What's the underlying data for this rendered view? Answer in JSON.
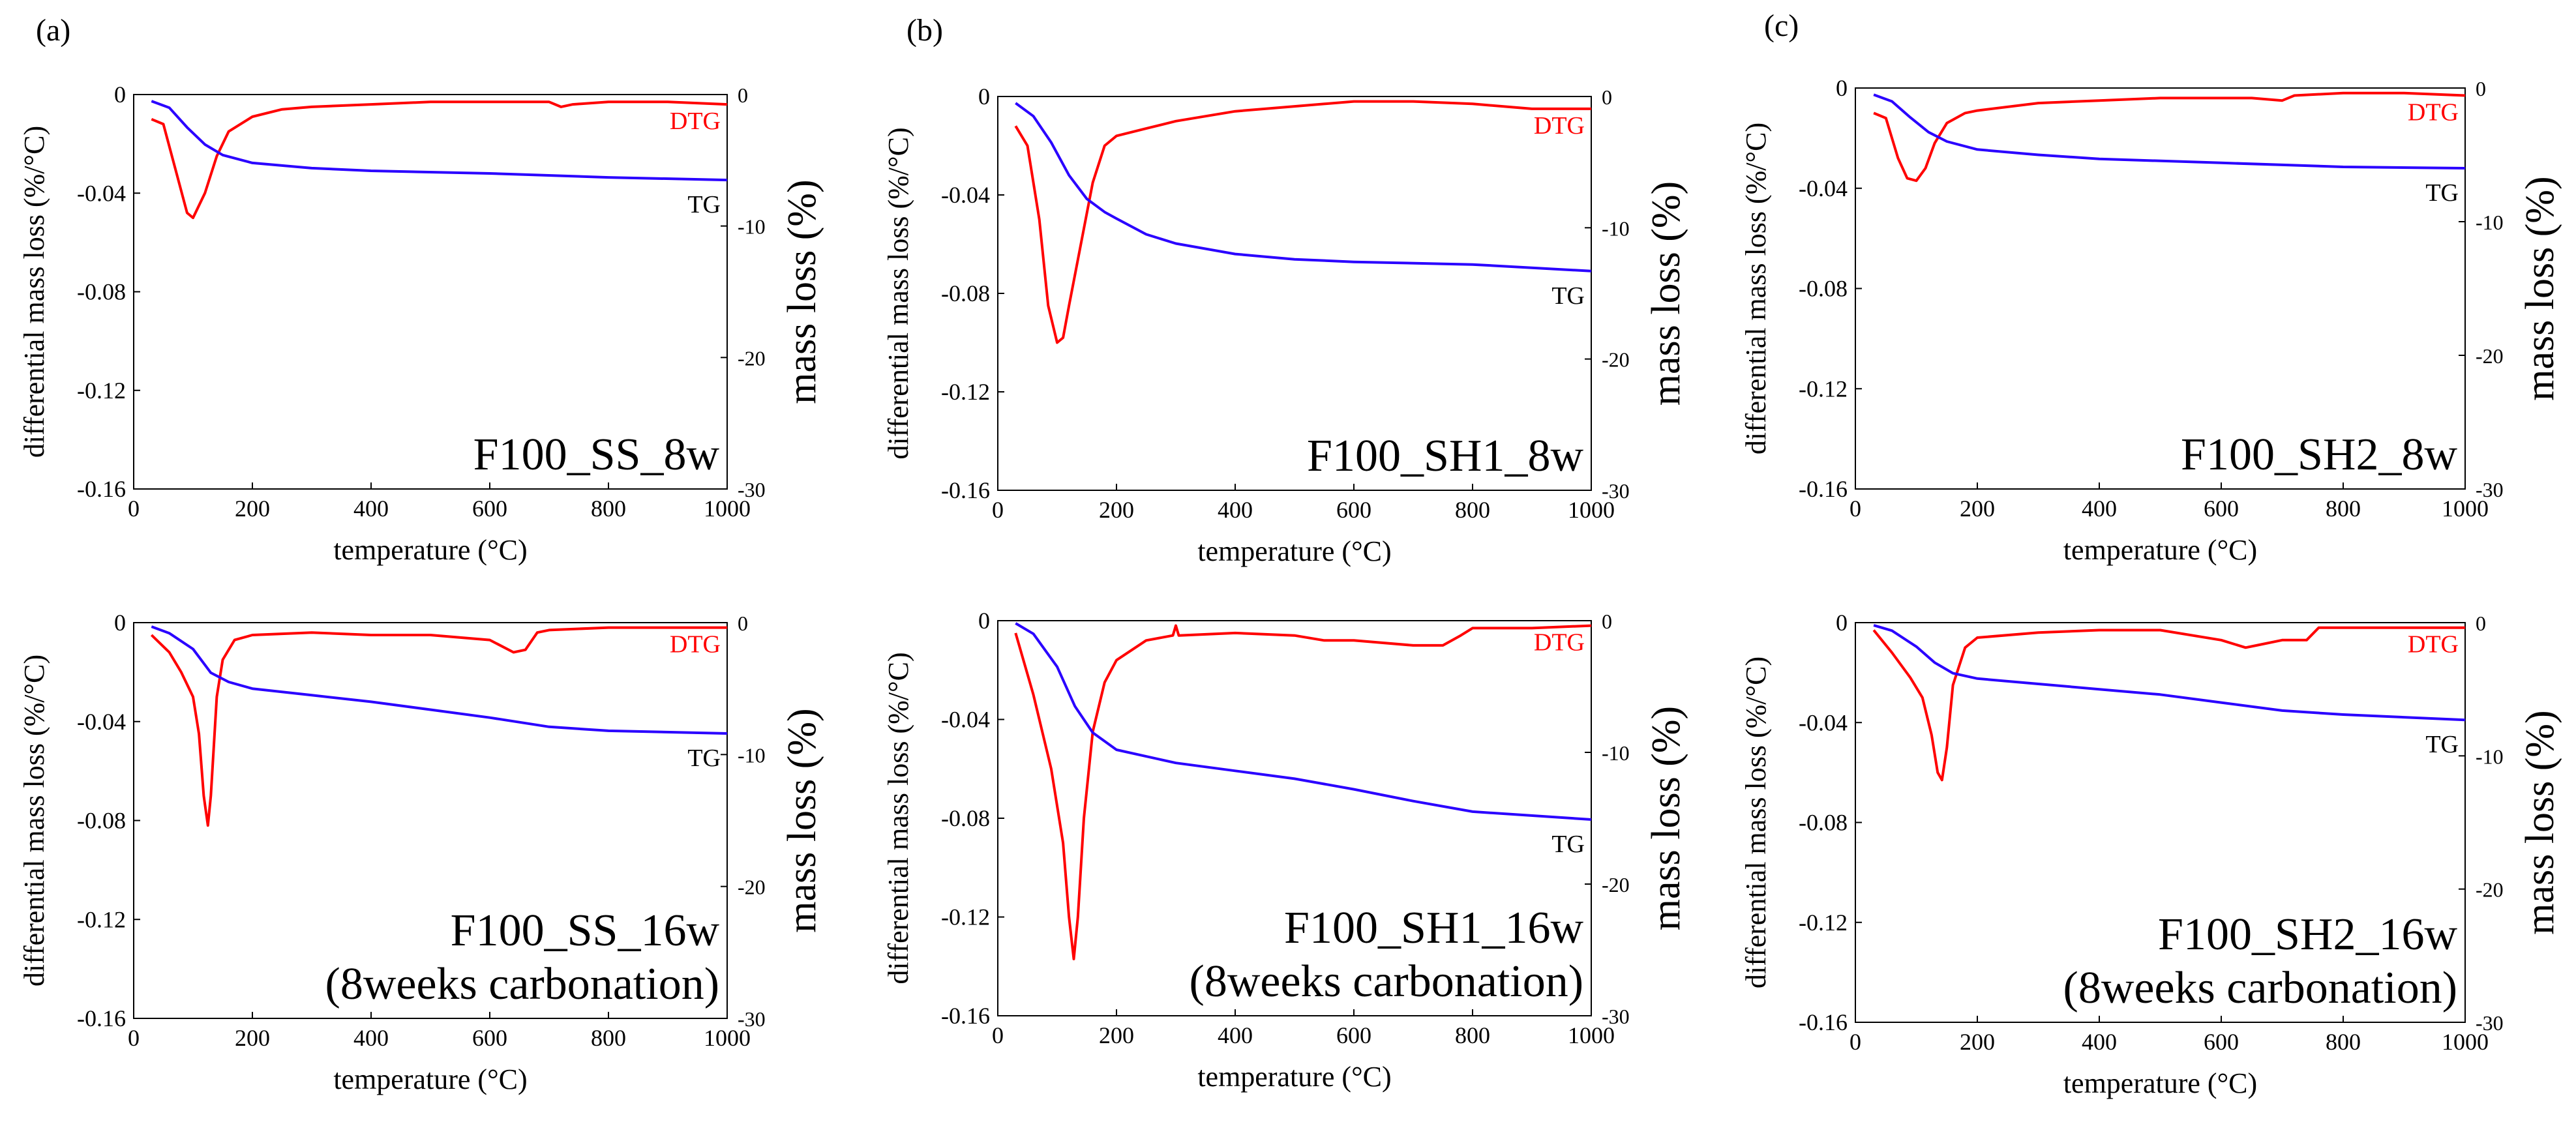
{
  "panel_letters": [
    "(a)",
    "(b)",
    "(c)"
  ],
  "chart_data": [
    {
      "type": "line",
      "panel": "(a)",
      "sample_label": [
        "F100_SS_8w"
      ],
      "xlabel": "temperature (°C)",
      "ylabel": "differential mass loss (%/°C)",
      "ylabel_right": "mass loss (%)",
      "xlim": [
        0,
        1000
      ],
      "ylim": [
        -0.16,
        0
      ],
      "ylim_right": [
        -30,
        0
      ],
      "xticks": [
        "0",
        "200",
        "400",
        "600",
        "800",
        "1000"
      ],
      "yticks": [
        "0",
        "-0.04",
        "-0.08",
        "-0.12",
        "-0.16"
      ],
      "yticks_right": [
        "0",
        "-10",
        "-20",
        "-30"
      ],
      "series": [
        {
          "name": "DTG",
          "axis": "left",
          "color": "#ff0000",
          "x": [
            30,
            50,
            70,
            90,
            100,
            120,
            140,
            160,
            200,
            250,
            300,
            400,
            500,
            600,
            700,
            720,
            740,
            800,
            900,
            1000
          ],
          "y": [
            -0.01,
            -0.012,
            -0.03,
            -0.048,
            -0.05,
            -0.04,
            -0.025,
            -0.015,
            -0.009,
            -0.006,
            -0.005,
            -0.004,
            -0.003,
            -0.003,
            -0.003,
            -0.005,
            -0.004,
            -0.003,
            -0.003,
            -0.004
          ]
        },
        {
          "name": "TG",
          "axis": "right",
          "color": "#2a00ff",
          "x": [
            30,
            60,
            90,
            120,
            150,
            200,
            300,
            400,
            600,
            800,
            1000
          ],
          "y": [
            -0.5,
            -1.0,
            -2.5,
            -3.8,
            -4.6,
            -5.2,
            -5.6,
            -5.8,
            -6.0,
            -6.3,
            -6.5
          ]
        }
      ]
    },
    {
      "type": "line",
      "panel": "(b)",
      "sample_label": [
        "F100_SH1_8w"
      ],
      "xlabel": "temperature (°C)",
      "ylabel": "differential mass loss (%/°C)",
      "ylabel_right": "mass loss (%)",
      "xlim": [
        0,
        1000
      ],
      "ylim": [
        -0.16,
        0
      ],
      "ylim_right": [
        -30,
        0
      ],
      "xticks": [
        "0",
        "200",
        "400",
        "600",
        "800",
        "1000"
      ],
      "yticks": [
        "0",
        "-0.04",
        "-0.08",
        "-0.12",
        "-0.16"
      ],
      "yticks_right": [
        "0",
        "-10",
        "-20",
        "-30"
      ],
      "series": [
        {
          "name": "DTG",
          "axis": "left",
          "color": "#ff0000",
          "x": [
            30,
            50,
            70,
            85,
            100,
            110,
            120,
            140,
            160,
            180,
            200,
            250,
            300,
            400,
            500,
            600,
            700,
            800,
            900,
            1000
          ],
          "y": [
            -0.012,
            -0.02,
            -0.05,
            -0.085,
            -0.1,
            -0.098,
            -0.085,
            -0.06,
            -0.035,
            -0.02,
            -0.016,
            -0.013,
            -0.01,
            -0.006,
            -0.004,
            -0.002,
            -0.002,
            -0.003,
            -0.005,
            -0.005
          ]
        },
        {
          "name": "TG",
          "axis": "right",
          "color": "#2a00ff",
          "x": [
            30,
            60,
            90,
            120,
            150,
            180,
            200,
            250,
            300,
            400,
            500,
            600,
            800,
            1000
          ],
          "y": [
            -0.5,
            -1.5,
            -3.5,
            -6.0,
            -7.8,
            -8.8,
            -9.3,
            -10.5,
            -11.2,
            -12.0,
            -12.4,
            -12.6,
            -12.8,
            -13.3
          ]
        }
      ]
    },
    {
      "type": "line",
      "panel": "(c)",
      "sample_label": [
        "F100_SH2_8w"
      ],
      "xlabel": "temperature (°C)",
      "ylabel": "differential mass loss (%/°C)",
      "ylabel_right": "mass loss (%)",
      "xlim": [
        0,
        1000
      ],
      "ylim": [
        -0.16,
        0
      ],
      "ylim_right": [
        -30,
        0
      ],
      "xticks": [
        "0",
        "200",
        "400",
        "600",
        "800",
        "1000"
      ],
      "yticks": [
        "0",
        "-0.04",
        "-0.08",
        "-0.12",
        "-0.16"
      ],
      "yticks_right": [
        "0",
        "-10",
        "-20",
        "-30"
      ],
      "series": [
        {
          "name": "DTG",
          "axis": "left",
          "color": "#ff0000",
          "x": [
            30,
            50,
            70,
            85,
            100,
            115,
            130,
            150,
            180,
            200,
            300,
            400,
            500,
            600,
            650,
            700,
            720,
            800,
            900,
            1000
          ],
          "y": [
            -0.01,
            -0.012,
            -0.028,
            -0.036,
            -0.037,
            -0.032,
            -0.022,
            -0.014,
            -0.01,
            -0.009,
            -0.006,
            -0.005,
            -0.004,
            -0.004,
            -0.004,
            -0.005,
            -0.003,
            -0.002,
            -0.002,
            -0.003
          ]
        },
        {
          "name": "TG",
          "axis": "right",
          "color": "#2a00ff",
          "x": [
            30,
            60,
            90,
            120,
            150,
            200,
            300,
            400,
            600,
            800,
            1000
          ],
          "y": [
            -0.5,
            -1.0,
            -2.2,
            -3.3,
            -4.0,
            -4.6,
            -5.0,
            -5.3,
            -5.6,
            -5.9,
            -6.0
          ]
        }
      ]
    },
    {
      "type": "line",
      "panel": "(a)",
      "sample_label": [
        "F100_SS_16w",
        "(8weeks carbonation)"
      ],
      "xlabel": "temperature (°C)",
      "ylabel": "differential mass loss (%/°C)",
      "ylabel_right": "mass loss (%)",
      "xlim": [
        0,
        1000
      ],
      "ylim": [
        -0.16,
        0
      ],
      "ylim_right": [
        -30,
        0
      ],
      "xticks": [
        "0",
        "200",
        "400",
        "600",
        "800",
        "1000"
      ],
      "yticks": [
        "0",
        "-0.04",
        "-0.08",
        "-0.12",
        "-0.16"
      ],
      "yticks_right": [
        "0",
        "-10",
        "-20",
        "-30"
      ],
      "series": [
        {
          "name": "DTG",
          "axis": "left",
          "color": "#ff0000",
          "x": [
            30,
            60,
            80,
            100,
            110,
            118,
            125,
            130,
            140,
            150,
            170,
            200,
            300,
            400,
            500,
            600,
            640,
            660,
            680,
            700,
            800,
            900,
            1000
          ],
          "y": [
            -0.005,
            -0.012,
            -0.02,
            -0.03,
            -0.045,
            -0.07,
            -0.082,
            -0.07,
            -0.03,
            -0.015,
            -0.007,
            -0.005,
            -0.004,
            -0.005,
            -0.005,
            -0.007,
            -0.012,
            -0.011,
            -0.004,
            -0.003,
            -0.002,
            -0.002,
            -0.002
          ]
        },
        {
          "name": "TG",
          "axis": "right",
          "color": "#2a00ff",
          "x": [
            30,
            60,
            100,
            130,
            160,
            200,
            300,
            400,
            500,
            600,
            700,
            800,
            1000
          ],
          "y": [
            -0.3,
            -0.8,
            -2.0,
            -3.8,
            -4.5,
            -5.0,
            -5.5,
            -6.0,
            -6.6,
            -7.2,
            -7.9,
            -8.2,
            -8.4
          ]
        }
      ]
    },
    {
      "type": "line",
      "panel": "(b)",
      "sample_label": [
        "F100_SH1_16w",
        "(8weeks carbonation)"
      ],
      "xlabel": "temperature (°C)",
      "ylabel": "differential mass loss (%/°C)",
      "ylabel_right": "mass loss (%)",
      "xlim": [
        0,
        1000
      ],
      "ylim": [
        -0.16,
        0
      ],
      "ylim_right": [
        -30,
        0
      ],
      "xticks": [
        "0",
        "200",
        "400",
        "600",
        "800",
        "1000"
      ],
      "yticks": [
        "0",
        "-0.04",
        "-0.08",
        "-0.12",
        "-0.16"
      ],
      "yticks_right": [
        "0",
        "-10",
        "-20",
        "-30"
      ],
      "series": [
        {
          "name": "DTG",
          "axis": "left",
          "color": "#ff0000",
          "x": [
            30,
            60,
            90,
            110,
            120,
            128,
            135,
            145,
            160,
            180,
            200,
            250,
            295,
            300,
            305,
            400,
            500,
            550,
            600,
            700,
            750,
            780,
            800,
            900,
            1000
          ],
          "y": [
            -0.005,
            -0.03,
            -0.06,
            -0.09,
            -0.12,
            -0.137,
            -0.12,
            -0.08,
            -0.045,
            -0.025,
            -0.016,
            -0.008,
            -0.006,
            -0.002,
            -0.006,
            -0.005,
            -0.006,
            -0.008,
            -0.008,
            -0.01,
            -0.01,
            -0.006,
            -0.003,
            -0.003,
            -0.002
          ]
        },
        {
          "name": "TG",
          "axis": "right",
          "color": "#2a00ff",
          "x": [
            30,
            60,
            100,
            130,
            160,
            200,
            300,
            400,
            500,
            600,
            700,
            800,
            1000
          ],
          "y": [
            -0.2,
            -1.0,
            -3.5,
            -6.5,
            -8.5,
            -9.8,
            -10.8,
            -11.4,
            -12.0,
            -12.8,
            -13.7,
            -14.5,
            -15.1
          ]
        }
      ]
    },
    {
      "type": "line",
      "panel": "(c)",
      "sample_label": [
        "F100_SH2_16w",
        "(8weeks carbonation)"
      ],
      "xlabel": "temperature (°C)",
      "ylabel": "differential mass loss (%/°C)",
      "ylabel_right": "mass loss (%)",
      "xlim": [
        0,
        1000
      ],
      "ylim": [
        -0.16,
        0
      ],
      "ylim_right": [
        -30,
        0
      ],
      "xticks": [
        "0",
        "200",
        "400",
        "600",
        "800",
        "1000"
      ],
      "yticks": [
        "0",
        "-0.04",
        "-0.08",
        "-0.12",
        "-0.16"
      ],
      "yticks_right": [
        "0",
        "-10",
        "-20",
        "-30"
      ],
      "series": [
        {
          "name": "DTG",
          "axis": "left",
          "color": "#ff0000",
          "x": [
            30,
            60,
            90,
            110,
            125,
            135,
            142,
            150,
            160,
            180,
            200,
            300,
            400,
            500,
            600,
            640,
            660,
            700,
            740,
            760,
            800,
            900,
            1000
          ],
          "y": [
            -0.003,
            -0.012,
            -0.022,
            -0.03,
            -0.045,
            -0.06,
            -0.063,
            -0.05,
            -0.025,
            -0.01,
            -0.006,
            -0.004,
            -0.003,
            -0.003,
            -0.007,
            -0.01,
            -0.009,
            -0.007,
            -0.007,
            -0.002,
            -0.002,
            -0.002,
            -0.002
          ]
        },
        {
          "name": "TG",
          "axis": "right",
          "color": "#2a00ff",
          "x": [
            30,
            60,
            100,
            130,
            160,
            200,
            300,
            400,
            500,
            600,
            700,
            800,
            1000
          ],
          "y": [
            -0.2,
            -0.6,
            -1.8,
            -3.0,
            -3.8,
            -4.2,
            -4.6,
            -5.0,
            -5.4,
            -6.0,
            -6.6,
            -6.9,
            -7.3
          ]
        }
      ]
    }
  ]
}
